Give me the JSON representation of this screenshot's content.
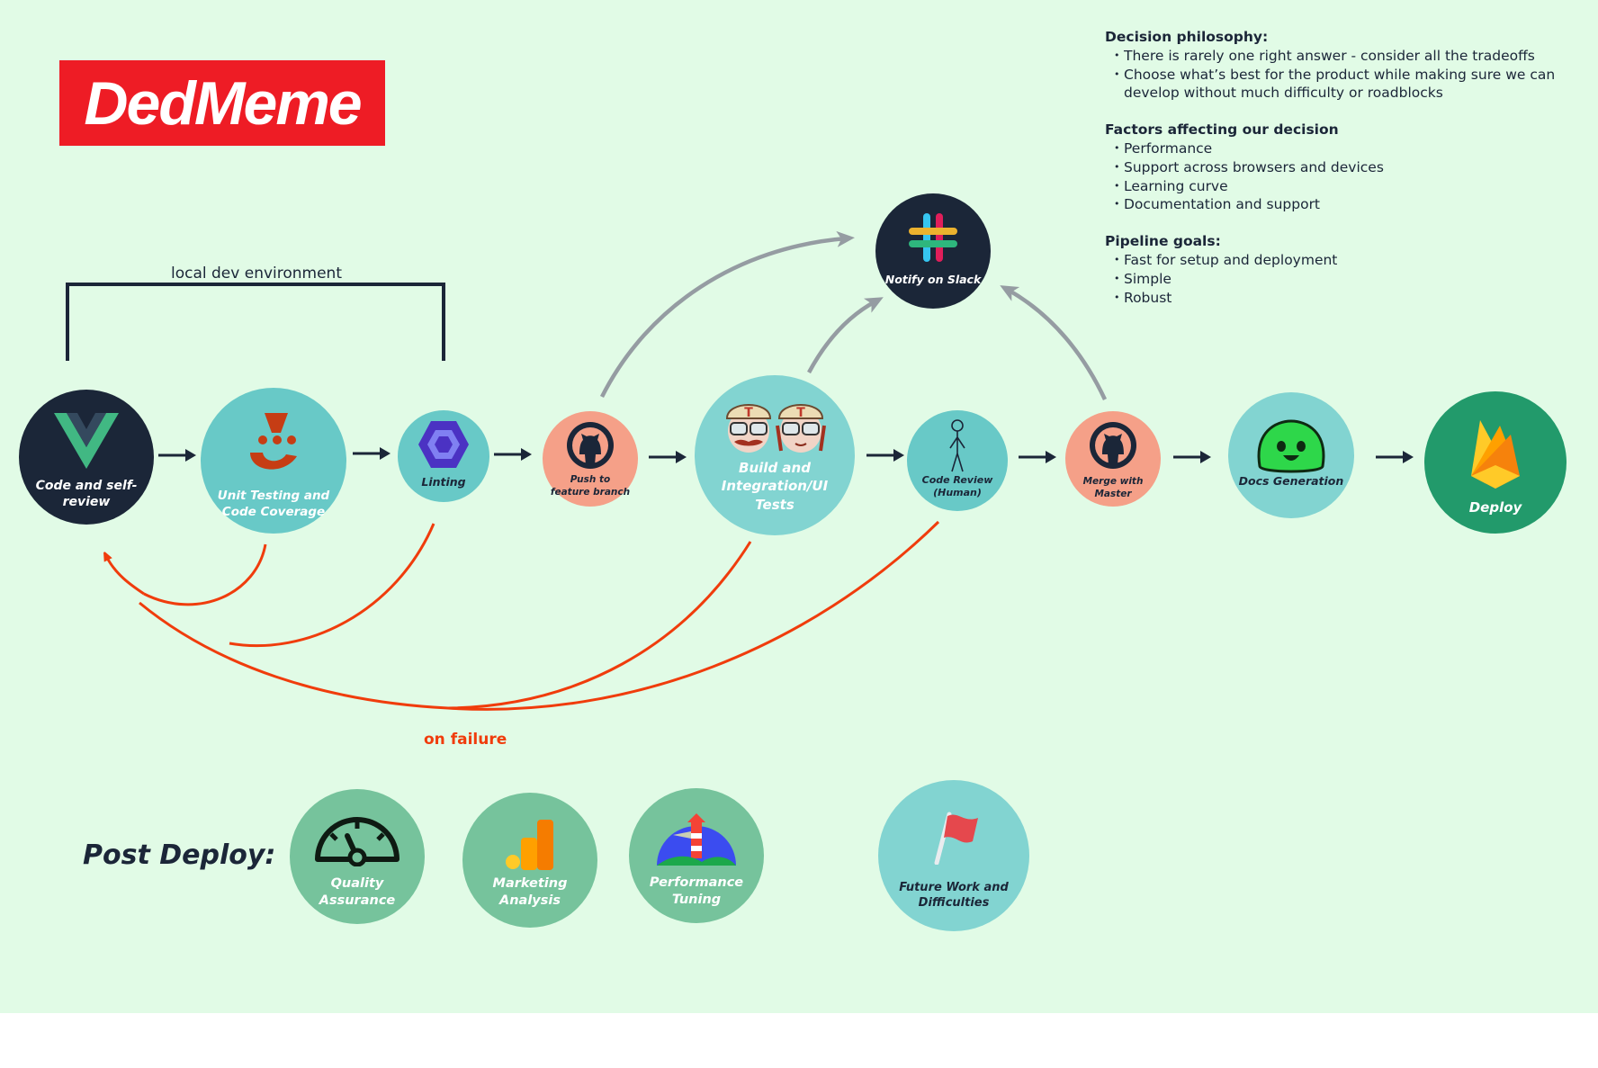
{
  "brand": {
    "name": "DedMeme"
  },
  "colors": {
    "canvas": "#e1fbe6",
    "navy": "#1b2638",
    "teal": "#68c9c7",
    "teal_light": "#82d4d1",
    "salmon": "#f5a088",
    "green_dark": "#229a6b",
    "green_soft": "#76c39c",
    "fail_red": "#f03c0c",
    "gray_arrow": "#959ca2"
  },
  "bracket": {
    "label": "local dev environment"
  },
  "failure": {
    "label": "on failure"
  },
  "pipeline": [
    {
      "id": "code",
      "label": "Code and self-review",
      "icon": "vue-logo-icon"
    },
    {
      "id": "unit",
      "label": "Unit Testing and Code Coverage",
      "icon": "jest-icon"
    },
    {
      "id": "lint",
      "label": "Linting",
      "icon": "eslint-icon"
    },
    {
      "id": "push",
      "label": "Push to feature branch",
      "icon": "github-icon"
    },
    {
      "id": "build",
      "label": "Build and Integration/UI Tests",
      "icon": "travis-icon"
    },
    {
      "id": "review",
      "label": "Code Review (Human)",
      "icon": "stick-figure-icon"
    },
    {
      "id": "merge",
      "label": "Merge with Master",
      "icon": "github-icon"
    },
    {
      "id": "docs",
      "label": "Docs Generation",
      "icon": "slime-icon"
    },
    {
      "id": "deploy",
      "label": "Deploy",
      "icon": "firebase-icon"
    }
  ],
  "slack": {
    "label": "Notify on Slack",
    "icon": "slack-icon"
  },
  "post_deploy": {
    "title": "Post Deploy:",
    "items": [
      {
        "label": "Quality Assurance",
        "icon": "speedometer-icon"
      },
      {
        "label": "Marketing Analysis",
        "icon": "analytics-icon"
      },
      {
        "label": "Performance Tuning",
        "icon": "lighthouse-icon"
      },
      {
        "label": "Future Work and Difficulties",
        "icon": "flag-icon"
      }
    ]
  },
  "notes": {
    "philosophy": {
      "title": "Decision philosophy:",
      "items": [
        "There is rarely one right answer - consider all the tradeoffs",
        "Choose what’s best for the product while making sure we can develop without much difficulty or roadblocks"
      ]
    },
    "factors": {
      "title": "Factors affecting our decision",
      "items": [
        "Performance",
        "Support across browsers and devices",
        "Learning curve",
        "Documentation and support"
      ]
    },
    "goals": {
      "title": "Pipeline goals:",
      "items": [
        "Fast for setup and deployment",
        "Simple",
        "Robust"
      ]
    }
  }
}
